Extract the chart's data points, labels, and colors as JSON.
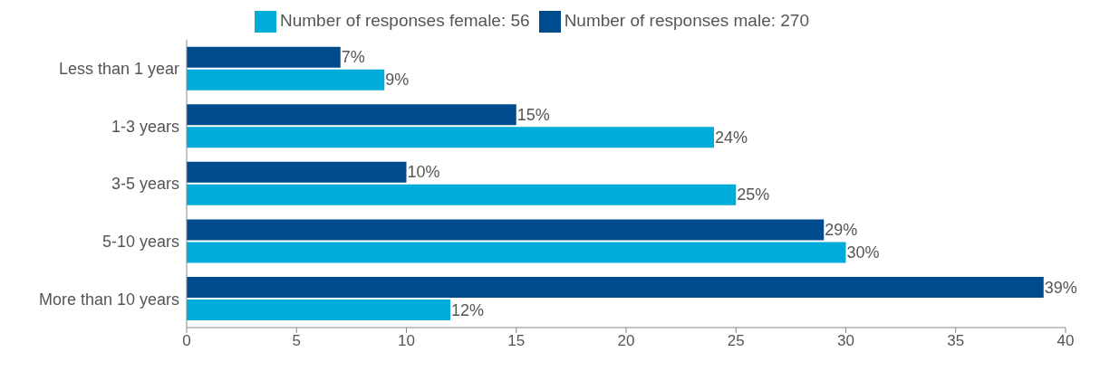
{
  "chart_data": {
    "type": "bar",
    "orientation": "horizontal",
    "categories": [
      "Less than 1 year",
      "1-3 years",
      "3-5 years",
      "5-10 years",
      "More than 10 years"
    ],
    "series": [
      {
        "name": "Number of responses male: 270",
        "color": "#004b8d",
        "values": [
          7,
          15,
          10,
          29,
          39
        ],
        "value_labels": [
          "7%",
          "15%",
          "10%",
          "29%",
          "39%"
        ]
      },
      {
        "name": "Number of responses female: 56",
        "color": "#00acd9",
        "values": [
          9,
          24,
          25,
          30,
          12
        ],
        "value_labels": [
          "9%",
          "24%",
          "25%",
          "30%",
          "12%"
        ]
      }
    ],
    "xlim": [
      0,
      40
    ],
    "xticks": [
      0,
      5,
      10,
      15,
      20,
      25,
      30,
      35,
      40
    ],
    "legend": "top"
  }
}
